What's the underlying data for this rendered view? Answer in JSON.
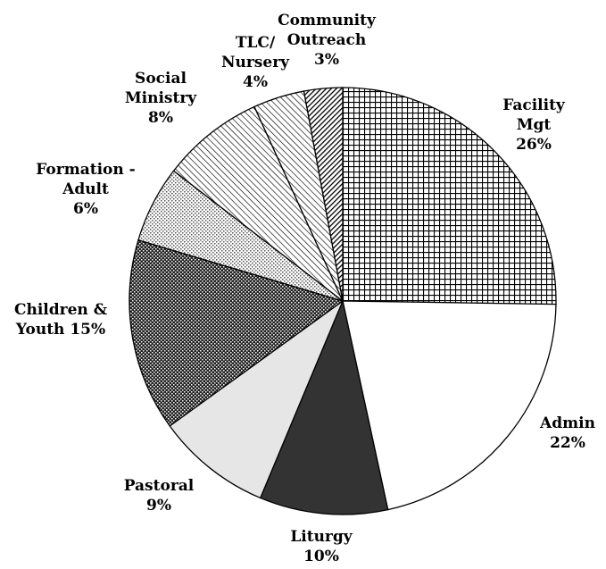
{
  "chart_data": {
    "type": "pie",
    "categories": [
      "Facility Mgt",
      "Admin",
      "Liturgy",
      "Pastoral",
      "Children & Youth",
      "Formation - Adult",
      "Social Ministry",
      "TLC/ Nursery",
      "Community Outreach"
    ],
    "values": [
      26,
      22,
      10,
      9,
      15,
      6,
      8,
      4,
      3
    ],
    "value_labels": [
      "26%",
      "22%",
      "10%",
      "9%",
      "15%",
      "6%",
      "8%",
      "4%",
      "3%"
    ],
    "patterns": [
      "grid",
      "none",
      "none",
      "none",
      "dense-check",
      "light-check",
      "diagonal",
      "diagonal",
      "dark-diagonal"
    ],
    "colors": [
      "#000000",
      "#ffffff",
      "#333333",
      "#e6e6e6",
      "#000000",
      "#555555",
      "#000000",
      "#000000",
      "#000000"
    ]
  }
}
